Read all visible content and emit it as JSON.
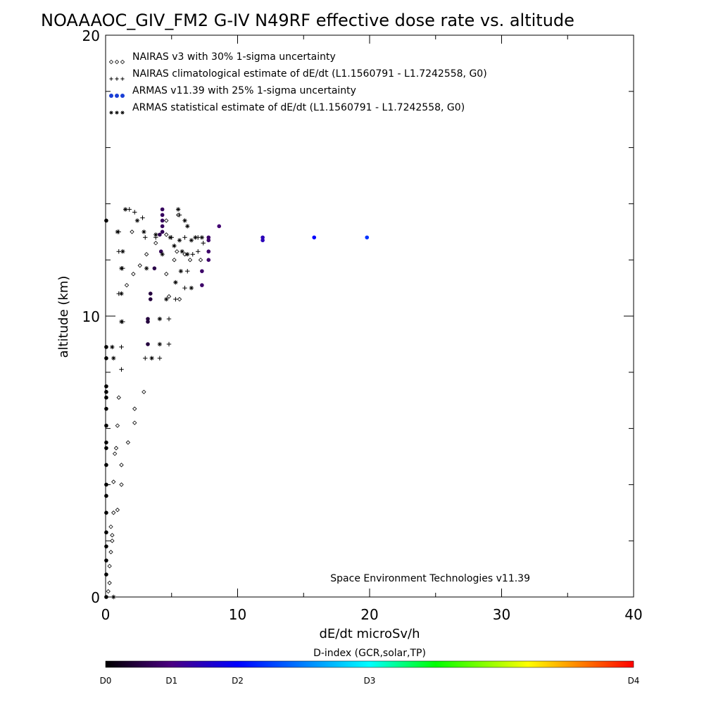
{
  "chart_data": {
    "type": "scatter",
    "title": "NOAAAOC_GIV_FM2 G-IV   N49RF  effective dose rate vs. altitude",
    "xlabel": "dE/dt microSv/h",
    "ylabel": "altitude (km)",
    "xlim": [
      0,
      40
    ],
    "ylim": [
      0,
      20
    ],
    "x_ticks": [
      0,
      10,
      20,
      30,
      40
    ],
    "y_ticks": [
      0,
      10,
      20
    ],
    "legend_position": "top-left",
    "annotation": "Space Environment Technologies v11.39",
    "colorbar": {
      "title": "D-index (GCR,solar,TP)",
      "labels": [
        {
          "text": "D0",
          "value": 0
        },
        {
          "text": "D1",
          "value": 0.125
        },
        {
          "text": "D2",
          "value": 0.25
        },
        {
          "text": "D3",
          "value": 0.5
        },
        {
          "text": "D4",
          "value": 1
        }
      ]
    },
    "series": [
      {
        "name": "NAIRAS v3 with 30% 1-sigma uncertainty",
        "marker": "diamond",
        "points": [
          [
            0.2,
            0.2
          ],
          [
            0.3,
            0.5
          ],
          [
            0.3,
            1.1
          ],
          [
            0.4,
            1.6
          ],
          [
            0.5,
            2.0
          ],
          [
            0.5,
            2.2
          ],
          [
            0.4,
            2.5
          ],
          [
            0.6,
            3.0
          ],
          [
            0.9,
            3.1
          ],
          [
            0.6,
            4.1
          ],
          [
            1.2,
            4.0
          ],
          [
            0.7,
            5.1
          ],
          [
            1.2,
            4.7
          ],
          [
            1.7,
            5.5
          ],
          [
            0.8,
            5.3
          ],
          [
            2.2,
            6.2
          ],
          [
            0.9,
            6.1
          ],
          [
            2.2,
            6.7
          ],
          [
            1.0,
            7.1
          ],
          [
            2.9,
            7.3
          ],
          [
            1.6,
            11.1
          ],
          [
            2.1,
            11.5
          ],
          [
            2.6,
            11.8
          ],
          [
            3.1,
            12.2
          ],
          [
            3.8,
            12.6
          ],
          [
            4.6,
            12.9
          ],
          [
            5.2,
            12.0
          ],
          [
            6.4,
            12.0
          ],
          [
            7.2,
            12.0
          ],
          [
            5.6,
            10.6
          ],
          [
            4.8,
            10.7
          ],
          [
            4.6,
            11.5
          ],
          [
            5.4,
            12.3
          ],
          [
            6.0,
            12.2
          ],
          [
            4.6,
            13.4
          ],
          [
            5.5,
            13.6
          ],
          [
            2.0,
            13.0
          ]
        ]
      },
      {
        "name": "NAIRAS climatological estimate of dE/dt (L1.1560791 - L1.7242558, G0)",
        "marker": "plus",
        "points": [
          [
            1.2,
            8.1
          ],
          [
            1.2,
            8.9
          ],
          [
            1.3,
            9.8
          ],
          [
            1.0,
            10.8
          ],
          [
            1.3,
            11.7
          ],
          [
            1.0,
            12.3
          ],
          [
            1.0,
            13.0
          ],
          [
            3.0,
            8.5
          ],
          [
            4.1,
            8.5
          ],
          [
            4.8,
            9.0
          ],
          [
            4.8,
            9.9
          ],
          [
            5.3,
            10.6
          ],
          [
            6.0,
            11.0
          ],
          [
            6.2,
            11.6
          ],
          [
            6.6,
            12.2
          ],
          [
            7.0,
            12.3
          ],
          [
            7.4,
            12.6
          ],
          [
            1.8,
            13.8
          ],
          [
            2.2,
            13.7
          ],
          [
            2.8,
            13.5
          ],
          [
            3.0,
            12.8
          ],
          [
            3.8,
            12.8
          ],
          [
            5.0,
            12.8
          ],
          [
            6.0,
            12.8
          ],
          [
            7.0,
            12.8
          ],
          [
            5.6,
            13.6
          ]
        ]
      },
      {
        "name": "ARMAS v11.39 with 25% 1-sigma uncertainty",
        "marker": "dot",
        "points": [
          {
            "x": 0.05,
            "y": 0.0,
            "d": 0.0
          },
          {
            "x": 0.05,
            "y": 0.8,
            "d": 0.0
          },
          {
            "x": 0.05,
            "y": 1.3,
            "d": 0.0
          },
          {
            "x": 0.05,
            "y": 1.8,
            "d": 0.0
          },
          {
            "x": 0.05,
            "y": 2.3,
            "d": 0.0
          },
          {
            "x": 0.05,
            "y": 3.0,
            "d": 0.0
          },
          {
            "x": 0.05,
            "y": 3.6,
            "d": 0.0
          },
          {
            "x": 0.05,
            "y": 4.0,
            "d": 0.0
          },
          {
            "x": 0.05,
            "y": 4.7,
            "d": 0.0
          },
          {
            "x": 0.05,
            "y": 5.3,
            "d": 0.0
          },
          {
            "x": 0.05,
            "y": 5.5,
            "d": 0.0
          },
          {
            "x": 0.05,
            "y": 6.1,
            "d": 0.0
          },
          {
            "x": 0.05,
            "y": 6.7,
            "d": 0.0
          },
          {
            "x": 0.05,
            "y": 7.1,
            "d": 0.0
          },
          {
            "x": 0.05,
            "y": 7.3,
            "d": 0.0
          },
          {
            "x": 0.05,
            "y": 7.5,
            "d": 0.0
          },
          {
            "x": 0.05,
            "y": 8.5,
            "d": 0.0
          },
          {
            "x": 0.05,
            "y": 8.9,
            "d": 0.0
          },
          {
            "x": 0.05,
            "y": 13.4,
            "d": 0.0
          },
          {
            "x": 3.2,
            "y": 9.0,
            "d": 0.06
          },
          {
            "x": 3.2,
            "y": 9.8,
            "d": 0.06
          },
          {
            "x": 3.2,
            "y": 9.9,
            "d": 0.06
          },
          {
            "x": 3.4,
            "y": 10.6,
            "d": 0.06
          },
          {
            "x": 3.4,
            "y": 10.8,
            "d": 0.06
          },
          {
            "x": 3.7,
            "y": 11.7,
            "d": 0.07
          },
          {
            "x": 4.2,
            "y": 12.3,
            "d": 0.08
          },
          {
            "x": 4.1,
            "y": 12.9,
            "d": 0.08
          },
          {
            "x": 4.3,
            "y": 13.0,
            "d": 0.08
          },
          {
            "x": 4.3,
            "y": 13.2,
            "d": 0.09
          },
          {
            "x": 4.3,
            "y": 13.4,
            "d": 0.09
          },
          {
            "x": 4.3,
            "y": 13.6,
            "d": 0.09
          },
          {
            "x": 4.3,
            "y": 13.8,
            "d": 0.09
          },
          {
            "x": 7.8,
            "y": 12.0,
            "d": 0.1
          },
          {
            "x": 7.8,
            "y": 12.3,
            "d": 0.1
          },
          {
            "x": 7.8,
            "y": 12.7,
            "d": 0.1
          },
          {
            "x": 7.8,
            "y": 12.8,
            "d": 0.1
          },
          {
            "x": 7.3,
            "y": 11.1,
            "d": 0.1
          },
          {
            "x": 7.3,
            "y": 11.6,
            "d": 0.1
          },
          {
            "x": 8.6,
            "y": 13.2,
            "d": 0.11
          },
          {
            "x": 11.9,
            "y": 12.7,
            "d": 0.18
          },
          {
            "x": 11.9,
            "y": 12.8,
            "d": 0.18
          },
          {
            "x": 15.8,
            "y": 12.8,
            "d": 0.25
          },
          {
            "x": 19.8,
            "y": 12.8,
            "d": 0.3
          }
        ]
      },
      {
        "name": "ARMAS statistical estimate of dE/dt (L1.1560791 - L1.7242558, G0)",
        "marker": "asterisk",
        "points": [
          [
            0.6,
            0.0
          ],
          [
            0.6,
            8.5
          ],
          [
            0.5,
            8.9
          ],
          [
            1.2,
            9.8
          ],
          [
            1.2,
            10.8
          ],
          [
            1.2,
            11.7
          ],
          [
            1.3,
            12.3
          ],
          [
            0.9,
            13.0
          ],
          [
            1.5,
            13.8
          ],
          [
            2.4,
            13.4
          ],
          [
            2.9,
            13.0
          ],
          [
            3.5,
            8.5
          ],
          [
            4.1,
            9.0
          ],
          [
            4.1,
            9.9
          ],
          [
            4.6,
            10.6
          ],
          [
            3.1,
            11.7
          ],
          [
            4.3,
            12.2
          ],
          [
            5.2,
            12.5
          ],
          [
            5.8,
            12.3
          ],
          [
            6.2,
            12.2
          ],
          [
            6.5,
            12.7
          ],
          [
            3.8,
            12.9
          ],
          [
            4.9,
            12.8
          ],
          [
            5.6,
            12.7
          ],
          [
            6.8,
            12.8
          ],
          [
            7.3,
            12.8
          ],
          [
            6.0,
            13.4
          ],
          [
            5.5,
            13.8
          ],
          [
            6.2,
            13.2
          ],
          [
            5.7,
            11.6
          ],
          [
            5.3,
            11.2
          ],
          [
            6.5,
            11.0
          ]
        ]
      }
    ]
  }
}
